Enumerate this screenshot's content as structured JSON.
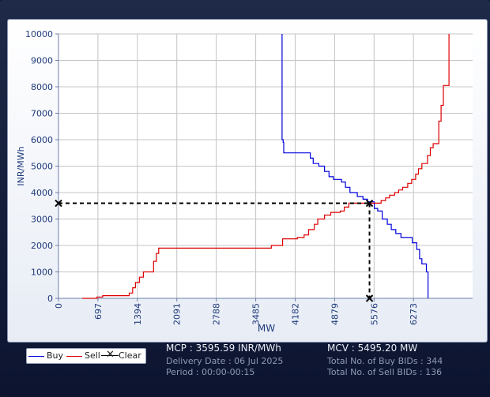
{
  "chart_data": {
    "type": "line",
    "ylabel": "INR/MWh",
    "xlabel": "MW",
    "xlim": [
      0,
      7317
    ],
    "ylim": [
      0,
      10000
    ],
    "x_ticks": [
      0,
      697,
      1394,
      2091,
      2788,
      3485,
      4182,
      4879,
      5576,
      6273
    ],
    "y_ticks": [
      0,
      1000,
      2000,
      3000,
      4000,
      5000,
      6000,
      7000,
      8000,
      9000,
      10000
    ],
    "grid": true,
    "legend_position": "bottom-left",
    "series": [
      {
        "name": "Buy",
        "color": "#0000dd",
        "points": [
          [
            3950,
            10000
          ],
          [
            3950,
            6000
          ],
          [
            3970,
            6000
          ],
          [
            3970,
            5900
          ],
          [
            3980,
            5900
          ],
          [
            3980,
            5500
          ],
          [
            4450,
            5500
          ],
          [
            4450,
            5300
          ],
          [
            4500,
            5300
          ],
          [
            4500,
            5100
          ],
          [
            4600,
            5100
          ],
          [
            4600,
            5000
          ],
          [
            4700,
            5000
          ],
          [
            4700,
            4800
          ],
          [
            4780,
            4800
          ],
          [
            4780,
            4600
          ],
          [
            4860,
            4600
          ],
          [
            4860,
            4500
          ],
          [
            5000,
            4500
          ],
          [
            5000,
            4400
          ],
          [
            5070,
            4400
          ],
          [
            5070,
            4200
          ],
          [
            5150,
            4200
          ],
          [
            5150,
            4000
          ],
          [
            5280,
            4000
          ],
          [
            5280,
            3850
          ],
          [
            5380,
            3850
          ],
          [
            5380,
            3750
          ],
          [
            5460,
            3750
          ],
          [
            5460,
            3650
          ],
          [
            5580,
            3650
          ],
          [
            5580,
            3400
          ],
          [
            5640,
            3400
          ],
          [
            5640,
            3300
          ],
          [
            5720,
            3300
          ],
          [
            5720,
            3000
          ],
          [
            5810,
            3000
          ],
          [
            5810,
            2800
          ],
          [
            5880,
            2800
          ],
          [
            5880,
            2600
          ],
          [
            5960,
            2600
          ],
          [
            5960,
            2450
          ],
          [
            6050,
            2450
          ],
          [
            6050,
            2300
          ],
          [
            6250,
            2300
          ],
          [
            6250,
            2100
          ],
          [
            6330,
            2100
          ],
          [
            6330,
            1850
          ],
          [
            6380,
            1850
          ],
          [
            6380,
            1500
          ],
          [
            6420,
            1500
          ],
          [
            6420,
            1300
          ],
          [
            6500,
            1300
          ],
          [
            6500,
            1000
          ],
          [
            6530,
            1000
          ],
          [
            6530,
            0
          ]
        ]
      },
      {
        "name": "Sell",
        "color": "#dd0000",
        "points": [
          [
            420,
            0
          ],
          [
            680,
            0
          ],
          [
            680,
            50
          ],
          [
            780,
            50
          ],
          [
            780,
            100
          ],
          [
            1250,
            100
          ],
          [
            1250,
            200
          ],
          [
            1310,
            200
          ],
          [
            1310,
            400
          ],
          [
            1360,
            400
          ],
          [
            1360,
            600
          ],
          [
            1430,
            600
          ],
          [
            1430,
            800
          ],
          [
            1500,
            800
          ],
          [
            1500,
            1000
          ],
          [
            1680,
            1000
          ],
          [
            1680,
            1400
          ],
          [
            1730,
            1400
          ],
          [
            1730,
            1700
          ],
          [
            1770,
            1700
          ],
          [
            1770,
            1900
          ],
          [
            3760,
            1900
          ],
          [
            3760,
            2000
          ],
          [
            3960,
            2000
          ],
          [
            3960,
            2250
          ],
          [
            4220,
            2250
          ],
          [
            4220,
            2300
          ],
          [
            4340,
            2300
          ],
          [
            4340,
            2400
          ],
          [
            4420,
            2400
          ],
          [
            4420,
            2600
          ],
          [
            4520,
            2600
          ],
          [
            4520,
            2800
          ],
          [
            4580,
            2800
          ],
          [
            4580,
            3000
          ],
          [
            4700,
            3000
          ],
          [
            4700,
            3150
          ],
          [
            4810,
            3150
          ],
          [
            4810,
            3250
          ],
          [
            4980,
            3250
          ],
          [
            4980,
            3300
          ],
          [
            5050,
            3300
          ],
          [
            5050,
            3450
          ],
          [
            5130,
            3450
          ],
          [
            5130,
            3600
          ],
          [
            5700,
            3600
          ],
          [
            5700,
            3700
          ],
          [
            5780,
            3700
          ],
          [
            5780,
            3800
          ],
          [
            5850,
            3800
          ],
          [
            5850,
            3900
          ],
          [
            5940,
            3900
          ],
          [
            5940,
            4000
          ],
          [
            6010,
            4000
          ],
          [
            6010,
            4100
          ],
          [
            6080,
            4100
          ],
          [
            6080,
            4200
          ],
          [
            6170,
            4200
          ],
          [
            6170,
            4350
          ],
          [
            6240,
            4350
          ],
          [
            6240,
            4500
          ],
          [
            6310,
            4500
          ],
          [
            6310,
            4700
          ],
          [
            6360,
            4700
          ],
          [
            6360,
            4900
          ],
          [
            6420,
            4900
          ],
          [
            6420,
            5100
          ],
          [
            6520,
            5100
          ],
          [
            6520,
            5400
          ],
          [
            6570,
            5400
          ],
          [
            6570,
            5700
          ],
          [
            6620,
            5700
          ],
          [
            6620,
            5850
          ],
          [
            6720,
            5850
          ],
          [
            6720,
            6700
          ],
          [
            6760,
            6700
          ],
          [
            6760,
            7300
          ],
          [
            6800,
            7300
          ],
          [
            6800,
            8050
          ],
          [
            6900,
            8050
          ],
          [
            6900,
            10000
          ]
        ]
      },
      {
        "name": "Clear",
        "color": "#000000",
        "point": [
          5495.2,
          3595.59
        ]
      }
    ]
  },
  "info": {
    "mcp": "MCP : 3595.59 INR/MWh",
    "delivery_date": "Delivery Date : 06 Jul 2025",
    "period": "Period :  00:00-00:15",
    "mcv": "MCV : 5495.20 MW",
    "buy_bids": "Total No. of Buy BIDs : 344",
    "sell_bids": "Total No. of Sell BIDs : 136"
  }
}
